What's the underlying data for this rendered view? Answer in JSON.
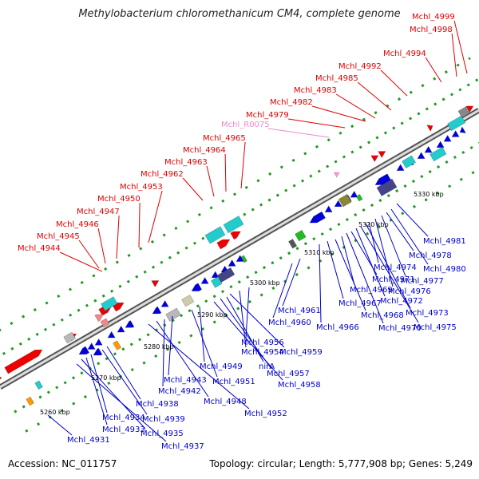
{
  "title": "Methylobacterium chloromethanicum CM4, complete genome",
  "accession": "Accession: NC_011757",
  "genome_info": "Topology: circular; Length: 5,777,908 bp; Genes: 5,249",
  "colors": {
    "top_label": "#dd0000",
    "rna_label": "#ee88cc",
    "bottom_label": "#0000cc",
    "forward_gene": "#ee0000",
    "reverse_gene": "#0000dd",
    "forward_pale": "#ee8888",
    "cyan_feature": "#22cccc",
    "dark_feature": "#444488",
    "gray_feature": "#b8b8b8",
    "green_feature": "#22bb22",
    "orange_feature": "#ff9900",
    "backbone": "#888888",
    "tick": "#229922"
  },
  "scale_labels": [
    {
      "text": "5260 kbp",
      "id": "scale-5260"
    },
    {
      "text": "5270 kbp",
      "id": "scale-5270"
    },
    {
      "text": "5280 kbp",
      "id": "scale-5280"
    },
    {
      "text": "5290 kbp",
      "id": "scale-5290"
    },
    {
      "text": "5300 kbp",
      "id": "scale-5300"
    },
    {
      "text": "5310 kbp",
      "id": "scale-5310"
    },
    {
      "text": "5320 kbp",
      "id": "scale-5320"
    },
    {
      "text": "5330 kbp",
      "id": "scale-5330"
    }
  ],
  "top_labels": [
    {
      "text": "Mchl_4999"
    },
    {
      "text": "Mchl_4998"
    },
    {
      "text": "Mchl_4994"
    },
    {
      "text": "Mchl_4992"
    },
    {
      "text": "Mchl_4985"
    },
    {
      "text": "Mchl_4983"
    },
    {
      "text": "Mchl_4982"
    },
    {
      "text": "Mchl_4979"
    },
    {
      "text": "Mchl_R0075"
    },
    {
      "text": "Mchl_4965"
    },
    {
      "text": "Mchl_4964"
    },
    {
      "text": "Mchl_4963"
    },
    {
      "text": "Mchl_4962"
    },
    {
      "text": "Mchl_4953"
    },
    {
      "text": "Mchl_4950"
    },
    {
      "text": "Mchl_4947"
    },
    {
      "text": "Mchl_4946"
    },
    {
      "text": "Mchl_4945"
    },
    {
      "text": "Mchl_4944"
    }
  ],
  "bottom_labels": [
    {
      "text": "Mchl_4981"
    },
    {
      "text": "Mchl_4980"
    },
    {
      "text": "Mchl_4978"
    },
    {
      "text": "Mchl_4977"
    },
    {
      "text": "Mchl_4976"
    },
    {
      "text": "Mchl_4974"
    },
    {
      "text": "Mchl_4973"
    },
    {
      "text": "Mchl_4975"
    },
    {
      "text": "Mchl_4972"
    },
    {
      "text": "Mchl_4971"
    },
    {
      "text": "Mchl_4970"
    },
    {
      "text": "Mchl_4969"
    },
    {
      "text": "Mchl_4968"
    },
    {
      "text": "Mchl_4967"
    },
    {
      "text": "Mchl_4966"
    },
    {
      "text": "Mchl_4961"
    },
    {
      "text": "Mchl_4960"
    },
    {
      "text": "Mchl_4956"
    },
    {
      "text": "Mchl_4954"
    },
    {
      "text": "Mchl_4959"
    },
    {
      "text": "nirA"
    },
    {
      "text": "Mchl_4957"
    },
    {
      "text": "Mchl_4958"
    },
    {
      "text": "Mchl_4949"
    },
    {
      "text": "Mchl_4951"
    },
    {
      "text": "Mchl_4943"
    },
    {
      "text": "Mchl_4942"
    },
    {
      "text": "Mchl_4948"
    },
    {
      "text": "Mchl_4952"
    },
    {
      "text": "Mchl_4938"
    },
    {
      "text": "Mchl_4939"
    },
    {
      "text": "Mchl_4934"
    },
    {
      "text": "Mchl_4933"
    },
    {
      "text": "Mchl_4935"
    },
    {
      "text": "Mchl_4931"
    },
    {
      "text": "Mchl_4937"
    }
  ]
}
